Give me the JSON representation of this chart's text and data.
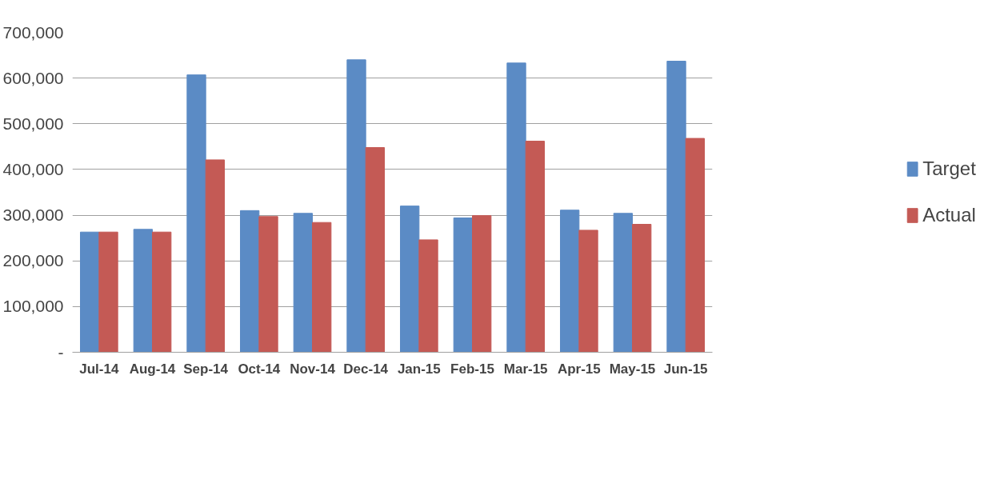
{
  "chart_data": {
    "type": "bar",
    "categories": [
      "Jul-14",
      "Aug-14",
      "Sep-14",
      "Oct-14",
      "Nov-14",
      "Dec-14",
      "Jan-15",
      "Feb-15",
      "Mar-15",
      "Apr-15",
      "May-15",
      "Jun-15"
    ],
    "series": [
      {
        "name": "Target",
        "color": "#5b8bc5",
        "values": [
          263000,
          269000,
          607000,
          310000,
          304000,
          640000,
          320000,
          294000,
          633000,
          311000,
          304000,
          637000
        ]
      },
      {
        "name": "Actual",
        "color": "#c45a55",
        "values": [
          263000,
          263000,
          421000,
          297000,
          284000,
          448000,
          246000,
          299000,
          462000,
          267000,
          280000,
          468000
        ]
      }
    ],
    "ylim": [
      0,
      700000
    ],
    "yticks": [
      {
        "value": 0,
        "label": "-"
      },
      {
        "value": 100000,
        "label": "100,000"
      },
      {
        "value": 200000,
        "label": "200,000"
      },
      {
        "value": 300000,
        "label": "300,000"
      },
      {
        "value": 400000,
        "label": "400,000"
      },
      {
        "value": 500000,
        "label": "500,000"
      },
      {
        "value": 600000,
        "label": "600,000"
      },
      {
        "value": 700000,
        "label": "700,000"
      }
    ],
    "grid": "y",
    "legend": "right"
  }
}
